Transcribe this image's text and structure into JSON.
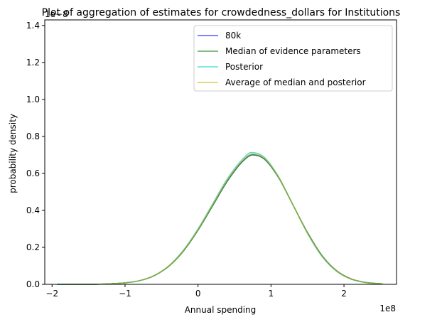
{
  "chart_data": {
    "type": "line",
    "title": "Plot of aggregation of estimates for crowdedness_dollars for Institutions",
    "xlabel": "Annual spending",
    "ylabel": "probability density",
    "x_offset_label": "1e8",
    "y_offset_label": "1e−8",
    "xlim": [
      -2.1,
      2.72
    ],
    "ylim": [
      0,
      1.43
    ],
    "x_unit_scale": 100000000,
    "y_unit_scale": 1e-08,
    "x_ticks": [
      {
        "value": -2,
        "label": "−2"
      },
      {
        "value": -1,
        "label": "−1"
      },
      {
        "value": 0,
        "label": "0"
      },
      {
        "value": 1,
        "label": "1"
      },
      {
        "value": 2,
        "label": "2"
      }
    ],
    "y_ticks": [
      {
        "value": 0.0,
        "label": "0.0"
      },
      {
        "value": 0.2,
        "label": "0.2"
      },
      {
        "value": 0.4,
        "label": "0.4"
      },
      {
        "value": 0.6,
        "label": "0.6"
      },
      {
        "value": 0.8,
        "label": "0.8"
      },
      {
        "value": 1.0,
        "label": "1.0"
      },
      {
        "value": 1.2,
        "label": "1.2"
      },
      {
        "value": 1.4,
        "label": "1.4"
      }
    ],
    "legend_position": "top-right",
    "grid": false,
    "series": [
      {
        "name": "80k",
        "color": "#0000ff",
        "x": [
          -1.93,
          -1.5,
          -1.2,
          -1.0,
          -0.8,
          -0.6,
          -0.4,
          -0.2,
          0.0,
          0.2,
          0.4,
          0.6,
          0.75,
          0.9,
          1.1,
          1.3,
          1.5,
          1.7,
          1.9,
          2.1,
          2.3,
          2.53
        ],
        "y": [
          0.0,
          0.0,
          0.003,
          0.008,
          0.02,
          0.047,
          0.098,
          0.18,
          0.293,
          0.425,
          0.557,
          0.66,
          0.7,
          0.68,
          0.58,
          0.43,
          0.28,
          0.155,
          0.073,
          0.029,
          0.01,
          0.002
        ]
      },
      {
        "name": "Median of evidence parameters",
        "color": "#008000",
        "x": [
          -1.93,
          -1.5,
          -1.2,
          -1.0,
          -0.8,
          -0.6,
          -0.4,
          -0.2,
          0.0,
          0.2,
          0.4,
          0.6,
          0.75,
          0.9,
          1.1,
          1.3,
          1.5,
          1.7,
          1.9,
          2.1,
          2.3,
          2.53
        ],
        "y": [
          0.0,
          0.0,
          0.003,
          0.008,
          0.02,
          0.047,
          0.098,
          0.18,
          0.293,
          0.425,
          0.557,
          0.66,
          0.7,
          0.68,
          0.58,
          0.43,
          0.28,
          0.155,
          0.073,
          0.029,
          0.01,
          0.002
        ]
      },
      {
        "name": "Posterior",
        "color": "#00c8c8",
        "x": [
          -1.93,
          -1.5,
          -1.2,
          -1.0,
          -0.8,
          -0.6,
          -0.4,
          -0.2,
          0.0,
          0.2,
          0.4,
          0.6,
          0.73,
          0.9,
          1.1,
          1.3,
          1.5,
          1.7,
          1.9,
          2.1,
          2.3,
          2.53
        ],
        "y": [
          0.0,
          0.0,
          0.003,
          0.008,
          0.02,
          0.048,
          0.1,
          0.185,
          0.3,
          0.435,
          0.57,
          0.672,
          0.713,
          0.69,
          0.585,
          0.43,
          0.275,
          0.15,
          0.07,
          0.027,
          0.009,
          0.002
        ]
      },
      {
        "name": "Average of median and posterior",
        "color": "#c8b400",
        "x": [
          -1.93,
          -1.5,
          -1.2,
          -1.0,
          -0.8,
          -0.6,
          -0.4,
          -0.2,
          0.0,
          0.2,
          0.4,
          0.6,
          0.74,
          0.9,
          1.1,
          1.3,
          1.5,
          1.7,
          1.9,
          2.1,
          2.3,
          2.53
        ],
        "y": [
          0.0,
          0.0,
          0.003,
          0.008,
          0.02,
          0.0475,
          0.099,
          0.1825,
          0.2965,
          0.43,
          0.5635,
          0.666,
          0.706,
          0.685,
          0.5825,
          0.43,
          0.2775,
          0.1525,
          0.0715,
          0.028,
          0.0095,
          0.002
        ]
      }
    ]
  }
}
